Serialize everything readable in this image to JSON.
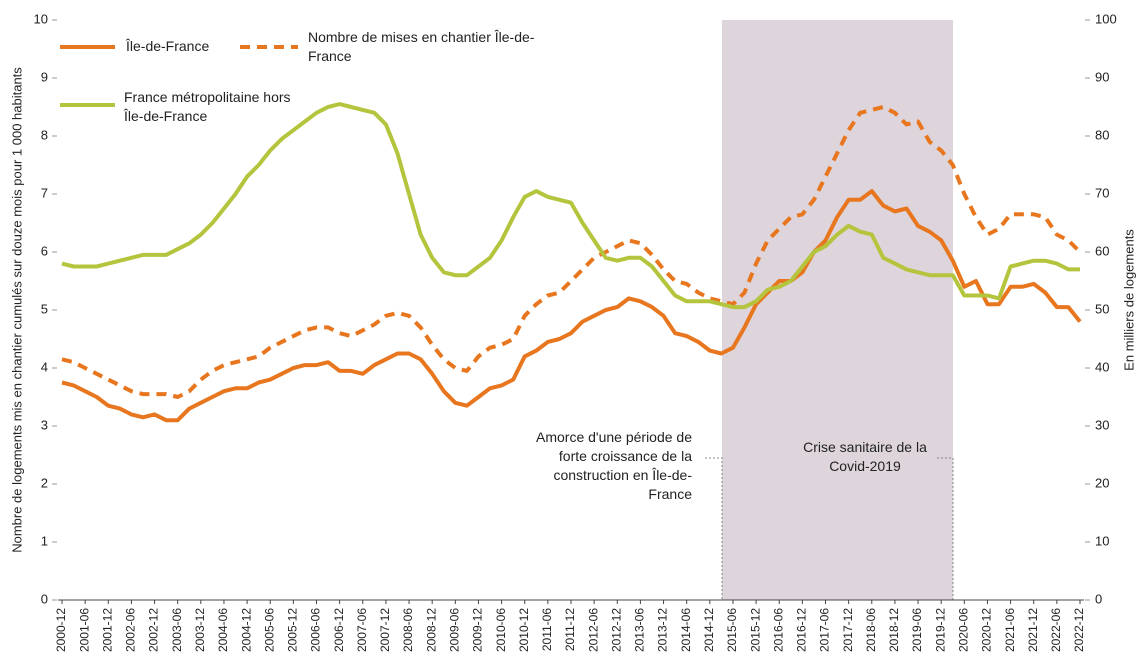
{
  "chart_data": {
    "type": "line",
    "y_label": "Nombre de logements mis en chantier cumulés sur douze mois pour 1 000 habitants",
    "y2_label": "En milliers de logements",
    "categories": [
      "2000-12",
      null,
      "2001-06",
      null,
      "2001-12",
      null,
      "2002-06",
      null,
      "2002-12",
      null,
      "2003-06",
      null,
      "2003-12",
      null,
      "2004-06",
      null,
      "2004-12",
      null,
      "2005-06",
      null,
      "2005-12",
      null,
      "2006-06",
      null,
      "2006-12",
      null,
      "2007-06",
      null,
      "2007-12",
      null,
      "2008-06",
      null,
      "2008-12",
      null,
      "2009-06",
      null,
      "2009-12",
      null,
      "2010-06",
      null,
      "2010-12",
      null,
      "2011-06",
      null,
      "2011-12",
      null,
      "2012-06",
      null,
      "2012-12",
      null,
      "2013-06",
      null,
      "2013-12",
      null,
      "2014-06",
      null,
      "2014-12",
      null,
      "2015-06",
      null,
      "2015-12",
      null,
      "2016-06",
      null,
      "2016-12",
      null,
      "2017-06",
      null,
      "2017-12",
      null,
      "2018-06",
      null,
      "2018-12",
      null,
      "2019-06",
      null,
      "2019-12",
      null,
      "2020-06",
      null,
      "2020-12",
      null,
      "2021-06",
      null,
      "2021-12",
      null,
      "2022-06",
      null,
      "2022-12"
    ],
    "series": [
      {
        "name": "Île-de-France",
        "color": "#e8761e",
        "style": "solid",
        "axis": "y",
        "values": [
          3.75,
          3.7,
          3.6,
          3.5,
          3.35,
          3.3,
          3.2,
          3.15,
          3.2,
          3.1,
          3.1,
          3.3,
          3.4,
          3.5,
          3.6,
          3.65,
          3.65,
          3.75,
          3.8,
          3.9,
          4.0,
          4.05,
          4.05,
          4.1,
          3.95,
          3.95,
          3.9,
          4.05,
          4.15,
          4.25,
          4.25,
          4.15,
          3.9,
          3.6,
          3.4,
          3.35,
          3.5,
          3.65,
          3.7,
          3.8,
          4.2,
          4.3,
          4.45,
          4.5,
          4.6,
          4.8,
          4.9,
          5.0,
          5.05,
          5.2,
          5.15,
          5.05,
          4.9,
          4.6,
          4.55,
          4.45,
          4.3,
          4.25,
          4.35,
          4.7,
          5.1,
          5.3,
          5.5,
          5.5,
          5.65,
          6.0,
          6.2,
          6.6,
          6.9,
          6.9,
          7.05,
          6.8,
          6.7,
          6.75,
          6.45,
          6.35,
          6.2,
          5.85,
          5.4,
          5.5,
          5.1,
          5.1,
          5.4,
          5.4,
          5.45,
          5.3,
          5.05,
          5.05,
          4.8
        ]
      },
      {
        "name": "Nombre de mises en chantier Île-de-France",
        "color": "#e8761e",
        "style": "dashed",
        "axis": "y2",
        "values": [
          41.5,
          41,
          40,
          39,
          38,
          37,
          36,
          35.5,
          35.5,
          35.5,
          35,
          36,
          38,
          39.5,
          40.5,
          41,
          41.5,
          42,
          43.5,
          44.5,
          45.5,
          46.5,
          47,
          47,
          46,
          45.5,
          46.5,
          47.5,
          49,
          49.5,
          49,
          47,
          44,
          41.5,
          40,
          39.5,
          42,
          43.5,
          44,
          45,
          49,
          51,
          52.5,
          53,
          55,
          57,
          59,
          60,
          61,
          62,
          61.5,
          59.5,
          57,
          55,
          54.5,
          53,
          52,
          51.5,
          51,
          53,
          58,
          62,
          64,
          66,
          66.5,
          69,
          73,
          77,
          81,
          84,
          84.5,
          85,
          84,
          82,
          82.5,
          79,
          77.5,
          75,
          70,
          66,
          63,
          64,
          66.5,
          66.5,
          66.5,
          66,
          63,
          62,
          60
        ]
      },
      {
        "name": "France métropolitaine hors Île-de-France",
        "color": "#b5c43d",
        "style": "solid",
        "axis": "y",
        "values": [
          5.8,
          5.75,
          5.75,
          5.75,
          5.8,
          5.85,
          5.9,
          5.95,
          5.95,
          5.95,
          6.05,
          6.15,
          6.3,
          6.5,
          6.75,
          7.0,
          7.3,
          7.5,
          7.75,
          7.95,
          8.1,
          8.25,
          8.4,
          8.5,
          8.55,
          8.5,
          8.45,
          8.4,
          8.2,
          7.7,
          7.0,
          6.3,
          5.9,
          5.65,
          5.6,
          5.6,
          5.75,
          5.9,
          6.2,
          6.6,
          6.95,
          7.05,
          6.95,
          6.9,
          6.85,
          6.5,
          6.2,
          5.9,
          5.85,
          5.9,
          5.9,
          5.75,
          5.5,
          5.25,
          5.15,
          5.15,
          5.15,
          5.1,
          5.05,
          5.05,
          5.15,
          5.35,
          5.4,
          5.5,
          5.75,
          6.0,
          6.1,
          6.3,
          6.45,
          6.35,
          6.3,
          5.9,
          5.8,
          5.7,
          5.65,
          5.6,
          5.6,
          5.6,
          5.25,
          5.25,
          5.25,
          5.2,
          5.75,
          5.8,
          5.85,
          5.85,
          5.8,
          5.7,
          5.7
        ]
      }
    ],
    "ylim": [
      0,
      10
    ],
    "yticks": [
      0,
      1,
      2,
      3,
      4,
      5,
      6,
      7,
      8,
      9,
      10
    ],
    "y2lim": [
      0,
      100
    ],
    "y2ticks": [
      0,
      10,
      20,
      30,
      40,
      50,
      60,
      70,
      80,
      90,
      100
    ],
    "annotations": [
      "Amorce d'une période de forte croissance de la construction en Île-de-France",
      "Crise sanitaire de la Covid-2019"
    ]
  }
}
